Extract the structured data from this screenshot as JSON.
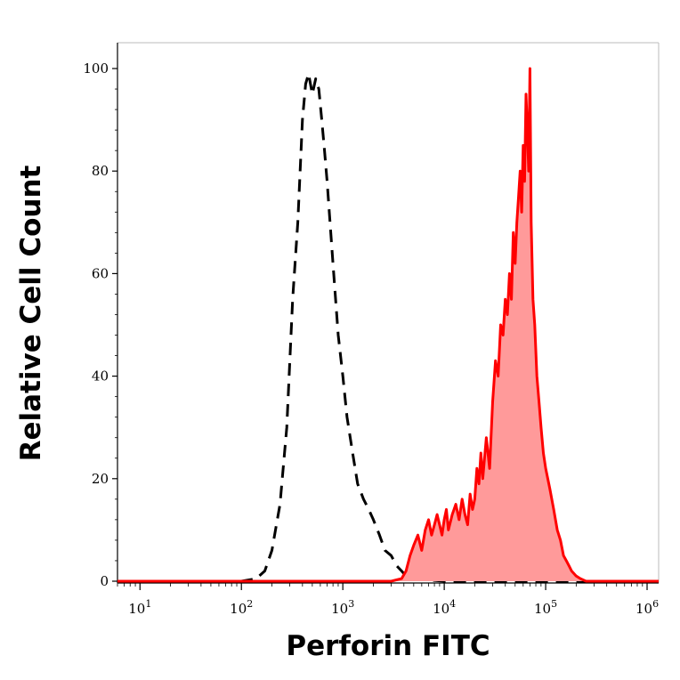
{
  "chart_data": {
    "type": "area",
    "title": "",
    "xlabel": "Perforin FITC",
    "ylabel": "Relative Cell Count",
    "x_scale": "log",
    "xlim": [
      6,
      1300000
    ],
    "ylim": [
      0,
      100
    ],
    "grid": false,
    "legend": "none",
    "x_ticks": [
      {
        "base": "10",
        "exp": "1",
        "value": 10
      },
      {
        "base": "10",
        "exp": "2",
        "value": 100
      },
      {
        "base": "10",
        "exp": "3",
        "value": 1000
      },
      {
        "base": "10",
        "exp": "4",
        "value": 10000
      },
      {
        "base": "10",
        "exp": "5",
        "value": 100000
      },
      {
        "base": "10",
        "exp": "6",
        "value": 1000000
      }
    ],
    "y_ticks": [
      {
        "label": "0",
        "value": 0
      },
      {
        "label": "20",
        "value": 20
      },
      {
        "label": "40",
        "value": 40
      },
      {
        "label": "60",
        "value": 60
      },
      {
        "label": "80",
        "value": 80
      },
      {
        "label": "100",
        "value": 100
      }
    ],
    "series": [
      {
        "style": "dashed",
        "color": "#000000",
        "fill": "none",
        "x": [
          6,
          100,
          140,
          170,
          200,
          240,
          280,
          320,
          360,
          400,
          430,
          460,
          500,
          540,
          580,
          620,
          660,
          700,
          800,
          900,
          1000,
          1100,
          1250,
          1400,
          1600,
          1800,
          2000,
          2300,
          2600,
          3000,
          3400,
          3800,
          4200,
          5000,
          10000,
          100000,
          1300000
        ],
        "y": [
          0,
          0,
          0.5,
          2,
          6,
          15,
          30,
          55,
          70,
          90,
          97,
          99,
          95,
          98,
          96,
          90,
          84,
          78,
          62,
          48,
          40,
          32,
          25,
          19,
          16,
          14,
          12,
          9,
          6,
          5,
          3,
          2,
          1,
          0.5,
          0,
          0,
          0
        ]
      },
      {
        "style": "solid",
        "color": "#ff0000",
        "fill": "#ff9a9a",
        "x": [
          6,
          3000,
          3800,
          4200,
          4600,
          5000,
          5500,
          6000,
          6500,
          7000,
          7500,
          8000,
          8500,
          9000,
          9500,
          10000,
          10500,
          11000,
          12000,
          13000,
          14000,
          15000,
          16000,
          17000,
          18000,
          19000,
          20000,
          21000,
          22000,
          23000,
          24000,
          26000,
          28000,
          30000,
          32000,
          34000,
          36000,
          38000,
          40000,
          42000,
          44000,
          46000,
          48000,
          50000,
          52000,
          54000,
          56000,
          58000,
          60000,
          62000,
          64000,
          66000,
          68000,
          70000,
          72000,
          75000,
          78000,
          82000,
          86000,
          90000,
          95000,
          100000,
          110000,
          120000,
          130000,
          140000,
          150000,
          160000,
          170000,
          180000,
          200000,
          220000,
          250000,
          300000,
          1300000
        ],
        "y": [
          0,
          0,
          0.5,
          2,
          5,
          7,
          9,
          6,
          10,
          12,
          9,
          11,
          13,
          11,
          9,
          12,
          14,
          10,
          13,
          15,
          12,
          16,
          13,
          11,
          17,
          14,
          16,
          22,
          19,
          25,
          20,
          28,
          22,
          35,
          43,
          40,
          50,
          48,
          55,
          52,
          60,
          55,
          68,
          62,
          70,
          75,
          80,
          72,
          85,
          78,
          95,
          88,
          80,
          100,
          70,
          55,
          50,
          40,
          35,
          30,
          25,
          22,
          18,
          14,
          10,
          8,
          5,
          4,
          3,
          2,
          1,
          0.5,
          0,
          0,
          0
        ]
      }
    ]
  }
}
